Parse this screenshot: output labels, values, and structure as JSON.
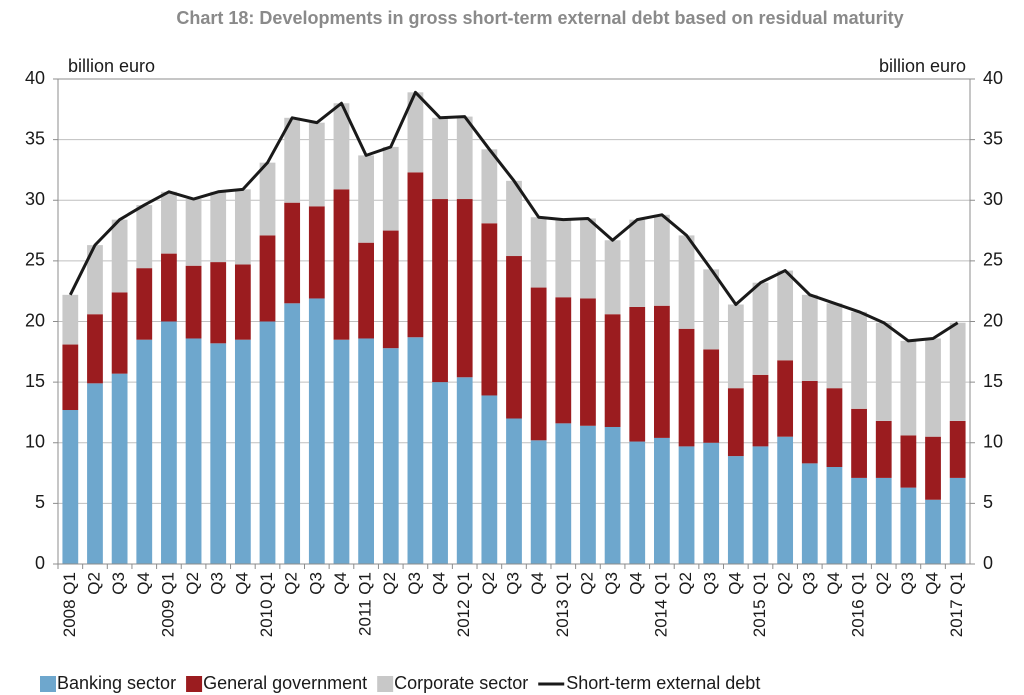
{
  "chart_data": {
    "type": "bar",
    "stacked": true,
    "title": "Chart 18: Developments in gross short-term external debt based on residual maturity",
    "ylabel": "billion euro",
    "y2label": "billion euro",
    "categories": [
      "2008 Q1",
      "Q2",
      "Q3",
      "Q4",
      "2009 Q1",
      "Q2",
      "Q3",
      "Q4",
      "2010 Q1",
      "Q2",
      "Q3",
      "Q4",
      "2011 Q1",
      "Q2",
      "Q3",
      "Q4",
      "2012 Q1",
      "Q2",
      "Q3",
      "Q4",
      "2013 Q1",
      "Q2",
      "Q3",
      "Q4",
      "2014 Q1",
      "Q2",
      "Q3",
      "Q4",
      "2015 Q1",
      "Q2",
      "Q3",
      "Q4",
      "2016 Q1",
      "Q2",
      "Q3",
      "Q4",
      "2017 Q1"
    ],
    "series": [
      {
        "name": "Banking sector",
        "type": "bar",
        "color": "#6ea7cd",
        "values": [
          12.7,
          14.9,
          15.7,
          18.5,
          20.0,
          18.6,
          18.2,
          18.5,
          20.0,
          21.5,
          21.9,
          18.5,
          18.6,
          17.8,
          18.7,
          15.0,
          15.4,
          13.9,
          12.0,
          10.2,
          11.6,
          11.4,
          11.3,
          10.1,
          10.4,
          9.7,
          10.0,
          8.9,
          9.7,
          10.5,
          8.3,
          8.0,
          7.1,
          7.1,
          6.3,
          5.3,
          7.1
        ]
      },
      {
        "name": "General government",
        "type": "bar",
        "color": "#9b1c1f",
        "values": [
          5.4,
          5.7,
          6.7,
          5.9,
          5.6,
          6.0,
          6.7,
          6.2,
          7.1,
          8.3,
          7.6,
          12.4,
          7.9,
          9.7,
          13.6,
          15.1,
          14.7,
          14.2,
          13.4,
          12.6,
          10.4,
          10.5,
          9.3,
          11.1,
          10.9,
          9.7,
          7.7,
          5.6,
          5.9,
          6.3,
          6.8,
          6.5,
          5.7,
          4.7,
          4.3,
          5.2,
          4.7
        ]
      },
      {
        "name": "Corporate sector",
        "type": "bar",
        "color": "#c8c8c8",
        "values": [
          4.1,
          5.7,
          6.0,
          5.2,
          5.1,
          5.5,
          5.8,
          6.2,
          6.0,
          7.0,
          6.9,
          7.1,
          7.2,
          6.9,
          6.6,
          6.7,
          6.8,
          6.1,
          6.2,
          5.8,
          6.4,
          6.6,
          6.1,
          7.2,
          7.5,
          7.7,
          6.6,
          6.9,
          7.6,
          7.4,
          7.1,
          7.0,
          8.0,
          8.1,
          7.8,
          8.1,
          8.1
        ]
      },
      {
        "name": "Short-term external debt",
        "type": "line",
        "color": "#1a1a1a",
        "values": [
          22.2,
          26.3,
          28.4,
          29.6,
          30.7,
          30.1,
          30.7,
          30.9,
          33.1,
          36.8,
          36.4,
          38.0,
          33.7,
          34.4,
          38.9,
          36.8,
          36.9,
          34.2,
          31.6,
          28.6,
          28.4,
          28.5,
          26.7,
          28.4,
          28.8,
          27.1,
          24.3,
          21.4,
          23.2,
          24.2,
          22.2,
          21.5,
          20.8,
          19.9,
          18.4,
          18.6,
          19.9
        ]
      }
    ],
    "ylim": [
      0,
      40
    ],
    "yticks": [
      0,
      5,
      10,
      15,
      20,
      25,
      30,
      35,
      40
    ],
    "y2lim": [
      0,
      40
    ],
    "y2ticks": [
      0,
      5,
      10,
      15,
      20,
      25,
      30,
      35,
      40
    ],
    "grid": true,
    "legend": "bottom"
  }
}
